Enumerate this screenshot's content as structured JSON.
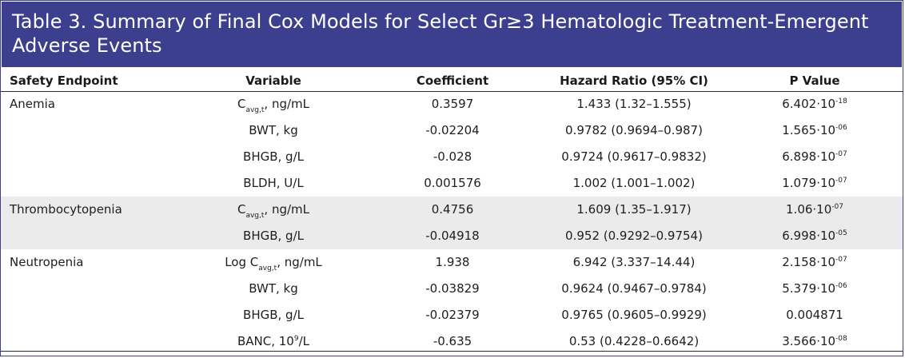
{
  "table": {
    "title_line1": "Table 3. Summary of Final Cox Models for Select Gr≥3 Hematologic Treatment-Emergent",
    "title_line2": "Adverse Events",
    "headers": {
      "endpoint": "Safety Endpoint",
      "variable": "Variable",
      "coefficient": "Coefficient",
      "hazard_ratio": "Hazard Ratio (95% CI)",
      "p_value": "P Value"
    },
    "rows": [
      {
        "endpoint": "Anemia",
        "var_prefix": "",
        "var_main": "C",
        "var_sub": "avg,t",
        "var_rest": ", ng/mL",
        "coefficient": "0.3597",
        "hazard_ratio": "1.433 (1.32–1.555)",
        "p_mantissa": "6.402·10",
        "p_exp": "-18",
        "shaded": false
      },
      {
        "endpoint": "",
        "var_prefix": "",
        "var_main": "BWT, kg",
        "var_sub": "",
        "var_rest": "",
        "coefficient": "-0.02204",
        "hazard_ratio": "0.9782 (0.9694–0.987)",
        "p_mantissa": "1.565·10",
        "p_exp": "-06",
        "shaded": false
      },
      {
        "endpoint": "",
        "var_prefix": "",
        "var_main": "BHGB, g/L",
        "var_sub": "",
        "var_rest": "",
        "coefficient": "-0.028",
        "hazard_ratio": "0.9724 (0.9617–0.9832)",
        "p_mantissa": "6.898·10",
        "p_exp": "-07",
        "shaded": false
      },
      {
        "endpoint": "",
        "var_prefix": "",
        "var_main": "BLDH, U/L",
        "var_sub": "",
        "var_rest": "",
        "coefficient": "0.001576",
        "hazard_ratio": "1.002 (1.001–1.002)",
        "p_mantissa": "1.079·10",
        "p_exp": "-07",
        "shaded": false
      },
      {
        "endpoint": "Thrombocytopenia",
        "var_prefix": "",
        "var_main": "C",
        "var_sub": "avg,t",
        "var_rest": ", ng/mL",
        "coefficient": "0.4756",
        "hazard_ratio": "1.609 (1.35–1.917)",
        "p_mantissa": "1.06·10",
        "p_exp": "-07",
        "shaded": true
      },
      {
        "endpoint": "",
        "var_prefix": "",
        "var_main": "BHGB, g/L",
        "var_sub": "",
        "var_rest": "",
        "coefficient": "-0.04918",
        "hazard_ratio": "0.952 (0.9292–0.9754)",
        "p_mantissa": "6.998·10",
        "p_exp": "-05",
        "shaded": true
      },
      {
        "endpoint": "Neutropenia",
        "var_prefix": "Log ",
        "var_main": "C",
        "var_sub": "avg,t",
        "var_rest": ", ng/mL",
        "coefficient": "1.938",
        "hazard_ratio": "6.942 (3.337–14.44)",
        "p_mantissa": "2.158·10",
        "p_exp": "-07",
        "shaded": false
      },
      {
        "endpoint": "",
        "var_prefix": "",
        "var_main": "BWT, kg",
        "var_sub": "",
        "var_rest": "",
        "coefficient": "-0.03829",
        "hazard_ratio": "0.9624 (0.9467–0.9784)",
        "p_mantissa": "5.379·10",
        "p_exp": "-06",
        "shaded": false
      },
      {
        "endpoint": "",
        "var_prefix": "",
        "var_main": "BHGB, g/L",
        "var_sub": "",
        "var_rest": "",
        "coefficient": "-0.02379",
        "hazard_ratio": "0.9765 (0.9605–0.9929)",
        "p_mantissa": "0.004871",
        "p_exp": "",
        "shaded": false
      },
      {
        "endpoint": "",
        "var_prefix": "",
        "var_main": "BANC, 10",
        "var_sub": "",
        "var_rest": "",
        "var_sup": "9",
        "var_after_sup": "/L",
        "coefficient": "-0.635",
        "hazard_ratio": "0.53 (0.4228–0.6642)",
        "p_mantissa": "3.566·10",
        "p_exp": "-08",
        "shaded": false
      }
    ]
  },
  "colors": {
    "title_bar": "#3c3f8e",
    "title_text": "#ffffff",
    "shaded_row": "#ebebeb"
  }
}
